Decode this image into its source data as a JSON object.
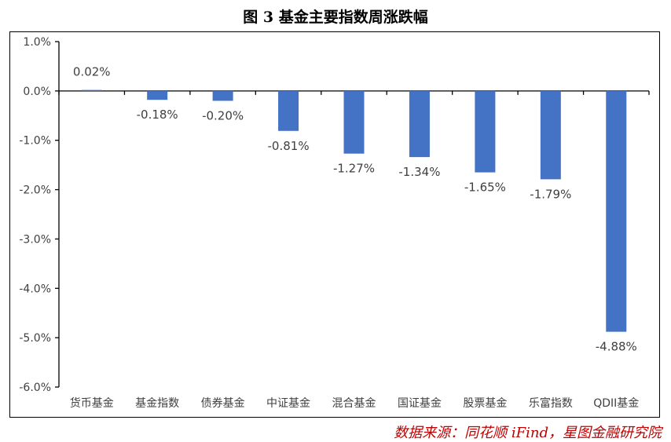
{
  "title": "图 3 基金主要指数周涨跌幅",
  "source": "数据来源：同花顺 iFind，星图金融研究院",
  "colors": {
    "bar": "#4472c4",
    "axis": "#000000",
    "text": "#404040",
    "source": "#c00000"
  },
  "chart_data": {
    "type": "bar",
    "categories": [
      "货币基金",
      "基金指数",
      "债券基金",
      "中证基金",
      "混合基金",
      "国证基金",
      "股票基金",
      "乐富指数",
      "QDII基金"
    ],
    "values": [
      0.02,
      -0.18,
      -0.2,
      -0.81,
      -1.27,
      -1.34,
      -1.65,
      -1.79,
      -4.88
    ],
    "data_labels": [
      "0.02%",
      "-0.18%",
      "-0.20%",
      "-0.81%",
      "-1.27%",
      "-1.34%",
      "-1.65%",
      "-1.79%",
      "-4.88%"
    ],
    "yticks": [
      1,
      0,
      -1,
      -2,
      -3,
      -4,
      -5,
      -6
    ],
    "ytick_labels": [
      "1.0%",
      "0.0%",
      "-1.0%",
      "-2.0%",
      "-3.0%",
      "-4.0%",
      "-5.0%",
      "-6.0%"
    ],
    "ylim": [
      -6,
      1
    ],
    "grid": false,
    "legend": "none",
    "xlabel": "",
    "ylabel": ""
  }
}
